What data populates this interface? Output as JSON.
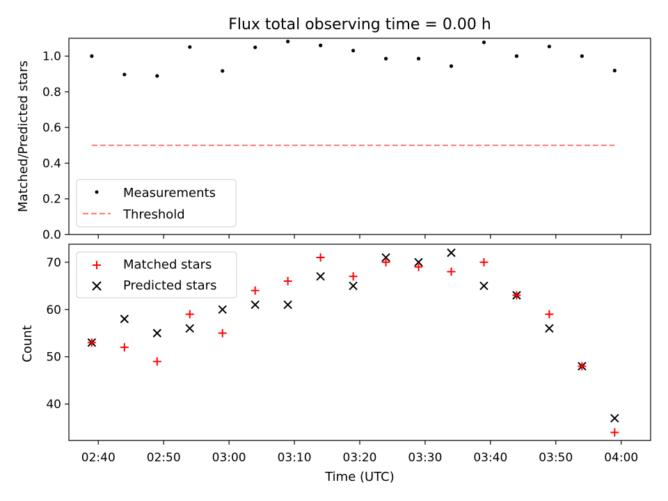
{
  "chart_data": [
    {
      "type": "scatter",
      "title": "Flux total observing time = 0.00 h",
      "xlabel": "",
      "ylabel": "Matched/Predicted stars",
      "ylim": [
        0.0,
        1.1
      ],
      "y_ticks": [
        0.0,
        0.2,
        0.4,
        0.6,
        0.8,
        1.0
      ],
      "x_ticks": [
        "02:40",
        "02:50",
        "03:00",
        "03:10",
        "03:20",
        "03:30",
        "03:40",
        "03:50",
        "04:00"
      ],
      "x_labels_visible": false,
      "grid": false,
      "legend_location": "lower-left",
      "x": [
        "02:39",
        "02:44",
        "02:49",
        "02:54",
        "02:59",
        "03:04",
        "03:09",
        "03:14",
        "03:19",
        "03:24",
        "03:29",
        "03:34",
        "03:39",
        "03:44",
        "03:49",
        "03:54",
        "03:59"
      ],
      "series": [
        {
          "name": "Measurements",
          "marker": "dot",
          "color": "#000000",
          "values": [
            1.0,
            0.897,
            0.889,
            1.051,
            0.917,
            1.049,
            1.082,
            1.06,
            1.031,
            0.986,
            0.986,
            0.944,
            1.077,
            1.0,
            1.054,
            1.0,
            0.919
          ]
        },
        {
          "name": "Threshold",
          "marker": "dashed-line",
          "color": "#ff7f7f",
          "values": [
            0.5,
            0.5
          ]
        }
      ]
    },
    {
      "type": "scatter",
      "title": "",
      "xlabel": "Time (UTC)",
      "ylabel": "Count",
      "ylim": [
        32.3,
        73.8
      ],
      "y_ticks": [
        40,
        50,
        60,
        70
      ],
      "x_ticks": [
        "02:40",
        "02:50",
        "03:00",
        "03:10",
        "03:20",
        "03:30",
        "03:40",
        "03:50",
        "04:00"
      ],
      "grid": false,
      "legend_location": "top-left",
      "x": [
        "02:39",
        "02:44",
        "02:49",
        "02:54",
        "02:59",
        "03:04",
        "03:09",
        "03:14",
        "03:19",
        "03:24",
        "03:29",
        "03:34",
        "03:39",
        "03:44",
        "03:49",
        "03:54",
        "03:59"
      ],
      "series": [
        {
          "name": "Matched stars",
          "marker": "plus",
          "color": "#ff0000",
          "values": [
            53,
            52,
            49,
            59,
            55,
            64,
            66,
            71,
            67,
            70,
            69,
            68,
            70,
            63,
            59,
            48,
            34
          ]
        },
        {
          "name": "Predicted stars",
          "marker": "x",
          "color": "#000000",
          "values": [
            53,
            58,
            55,
            56,
            60,
            61,
            61,
            67,
            65,
            71,
            70,
            72,
            65,
            63,
            56,
            48,
            37
          ]
        }
      ]
    }
  ]
}
